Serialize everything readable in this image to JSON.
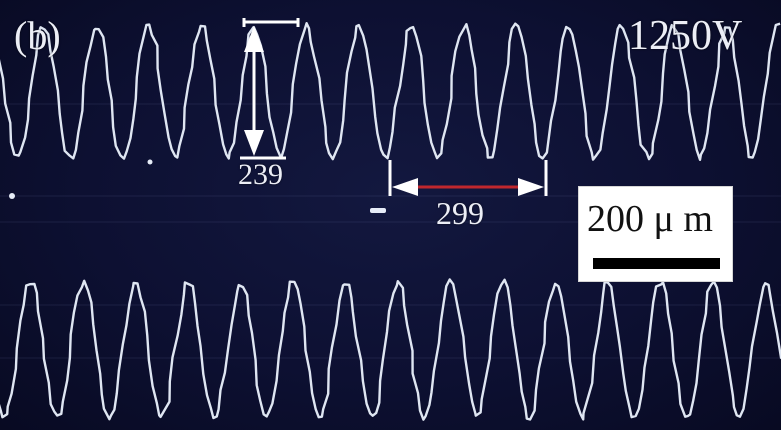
{
  "image": {
    "panel_label": "(b)",
    "voltage": "1250V",
    "height_measurement": "239",
    "width_measurement": "299",
    "scale_bar_label": "200 μ m"
  },
  "colors": {
    "background": "#0d1032",
    "trace": "#dfe6f2",
    "measure_line": "#ffffff",
    "measure_accent": "#c0272d",
    "scale_box": "#ffffff"
  }
}
